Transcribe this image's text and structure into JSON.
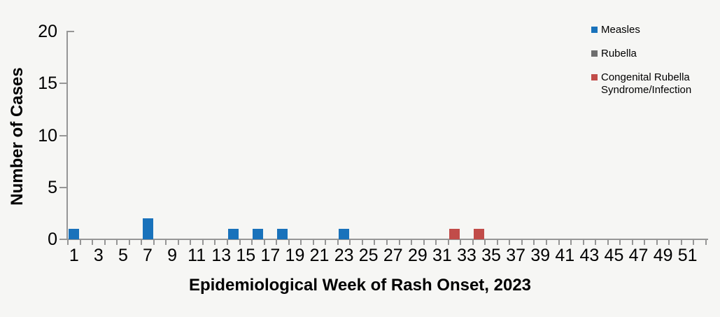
{
  "colors": {
    "background": "#f6f6f4",
    "axis": "#969696",
    "text": "#000000",
    "measles_blue": "#1972bb",
    "rubella_gray": "#6e6e6e",
    "crs_red": "#c14c49"
  },
  "chart_data": {
    "type": "bar",
    "title": "",
    "xlabel": "Epidemiological Week of Rash Onset, 2023",
    "ylabel": "Number of Cases",
    "ylim": [
      0,
      20
    ],
    "y_ticks": [
      0,
      5,
      10,
      15,
      20
    ],
    "weeks_total": 52,
    "x_tick_weeks": [
      1,
      3,
      5,
      7,
      9,
      11,
      13,
      15,
      17,
      19,
      21,
      23,
      25,
      27,
      29,
      31,
      33,
      35,
      37,
      39,
      41,
      43,
      45,
      47,
      49,
      51
    ],
    "grid": "off",
    "legend_position": "top-right",
    "legend": [
      {
        "label": "Measles",
        "color": "#1972bb"
      },
      {
        "label": "Rubella",
        "color": "#6e6e6e"
      },
      {
        "label": "Congenital Rubella Syndrome/Infection",
        "color": "#c14c49"
      }
    ],
    "series": [
      {
        "name": "Measles",
        "color": "#1972bb",
        "points": [
          {
            "week": 1,
            "cases": 1
          },
          {
            "week": 7,
            "cases": 2
          },
          {
            "week": 14,
            "cases": 1
          },
          {
            "week": 16,
            "cases": 1
          },
          {
            "week": 18,
            "cases": 1
          },
          {
            "week": 23,
            "cases": 1
          }
        ]
      },
      {
        "name": "Rubella",
        "color": "#6e6e6e",
        "points": []
      },
      {
        "name": "Congenital Rubella Syndrome/Infection",
        "color": "#c14c49",
        "points": [
          {
            "week": 32,
            "cases": 1
          },
          {
            "week": 34,
            "cases": 1
          }
        ]
      }
    ]
  }
}
